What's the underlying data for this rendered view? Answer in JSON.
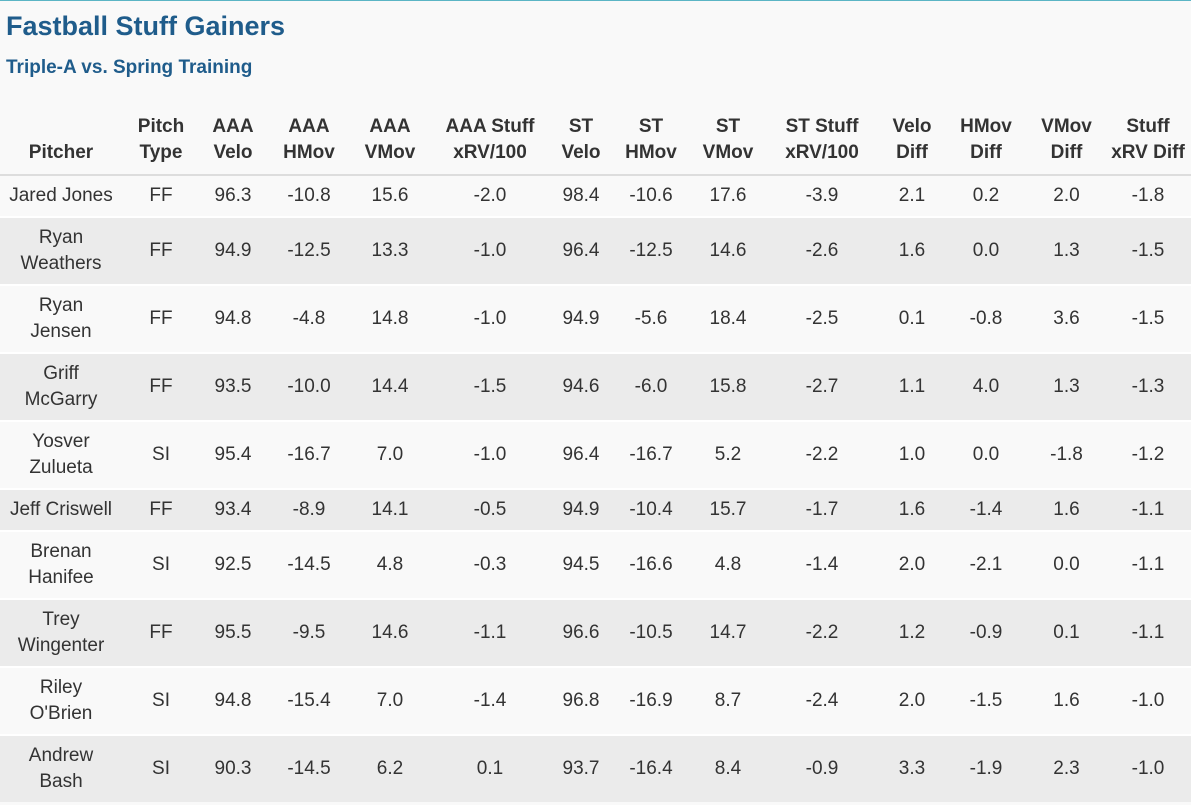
{
  "header": {
    "title": "Fastball Stuff Gainers",
    "subtitle": "Triple-A vs. Spring Training"
  },
  "table": {
    "columns": [
      "Pitcher",
      "Pitch Type",
      "AAA Velo",
      "AAA HMov",
      "AAA VMov",
      "AAA Stuff xRV/100",
      "ST Velo",
      "ST HMov",
      "ST VMov",
      "ST Stuff xRV/100",
      "Velo Diff",
      "HMov Diff",
      "VMov Diff",
      "Stuff xRV Diff"
    ],
    "rows": [
      [
        "Jared Jones",
        "FF",
        "96.3",
        "-10.8",
        "15.6",
        "-2.0",
        "98.4",
        "-10.6",
        "17.6",
        "-3.9",
        "2.1",
        "0.2",
        "2.0",
        "-1.8"
      ],
      [
        "Ryan Weathers",
        "FF",
        "94.9",
        "-12.5",
        "13.3",
        "-1.0",
        "96.4",
        "-12.5",
        "14.6",
        "-2.6",
        "1.6",
        "0.0",
        "1.3",
        "-1.5"
      ],
      [
        "Ryan Jensen",
        "FF",
        "94.8",
        "-4.8",
        "14.8",
        "-1.0",
        "94.9",
        "-5.6",
        "18.4",
        "-2.5",
        "0.1",
        "-0.8",
        "3.6",
        "-1.5"
      ],
      [
        "Griff McGarry",
        "FF",
        "93.5",
        "-10.0",
        "14.4",
        "-1.5",
        "94.6",
        "-6.0",
        "15.8",
        "-2.7",
        "1.1",
        "4.0",
        "1.3",
        "-1.3"
      ],
      [
        "Yosver Zulueta",
        "SI",
        "95.4",
        "-16.7",
        "7.0",
        "-1.0",
        "96.4",
        "-16.7",
        "5.2",
        "-2.2",
        "1.0",
        "0.0",
        "-1.8",
        "-1.2"
      ],
      [
        "Jeff Criswell",
        "FF",
        "93.4",
        "-8.9",
        "14.1",
        "-0.5",
        "94.9",
        "-10.4",
        "15.7",
        "-1.7",
        "1.6",
        "-1.4",
        "1.6",
        "-1.1"
      ],
      [
        "Brenan Hanifee",
        "SI",
        "92.5",
        "-14.5",
        "4.8",
        "-0.3",
        "94.5",
        "-16.6",
        "4.8",
        "-1.4",
        "2.0",
        "-2.1",
        "0.0",
        "-1.1"
      ],
      [
        "Trey Wingenter",
        "FF",
        "95.5",
        "-9.5",
        "14.6",
        "-1.1",
        "96.6",
        "-10.5",
        "14.7",
        "-2.2",
        "1.2",
        "-0.9",
        "0.1",
        "-1.1"
      ],
      [
        "Riley O'Brien",
        "SI",
        "94.8",
        "-15.4",
        "7.0",
        "-1.4",
        "96.8",
        "-16.9",
        "8.7",
        "-2.4",
        "2.0",
        "-1.5",
        "1.6",
        "-1.0"
      ],
      [
        "Andrew Bash",
        "SI",
        "90.3",
        "-14.5",
        "6.2",
        "0.1",
        "93.7",
        "-16.4",
        "8.4",
        "-0.9",
        "3.3",
        "-1.9",
        "2.3",
        "-1.0"
      ]
    ]
  }
}
